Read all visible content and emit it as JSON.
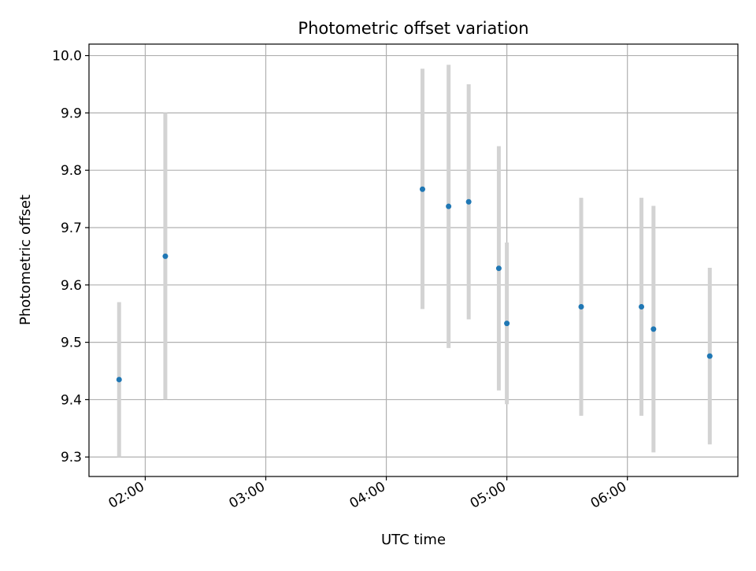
{
  "chart_data": {
    "type": "scatter",
    "title": "Photometric offset variation",
    "xlabel": "UTC time",
    "ylabel": "Photometric offset",
    "xlim": [
      "01:32",
      "06:55"
    ],
    "ylim": [
      9.266,
      10.02
    ],
    "x_ticks": [
      "02:00",
      "03:00",
      "04:00",
      "05:00",
      "06:00"
    ],
    "y_ticks": [
      9.3,
      9.4,
      9.5,
      9.6,
      9.7,
      9.8,
      9.9,
      10.0
    ],
    "y_tick_labels": [
      "9.3",
      "9.4",
      "9.5",
      "9.6",
      "9.7",
      "9.8",
      "9.9",
      "10.0"
    ],
    "grid": true,
    "colors": {
      "points": "#1f77b4",
      "errorbars": "#d3d3d3",
      "grid": "#b0b0b0"
    },
    "points": [
      {
        "x": "01:47",
        "y": 9.435,
        "ylow": 9.3,
        "yhigh": 9.57
      },
      {
        "x": "02:10",
        "y": 9.65,
        "ylow": 9.4,
        "yhigh": 9.9
      },
      {
        "x": "04:18",
        "y": 9.767,
        "ylow": 9.558,
        "yhigh": 9.977
      },
      {
        "x": "04:31",
        "y": 9.737,
        "ylow": 9.49,
        "yhigh": 9.984
      },
      {
        "x": "04:41",
        "y": 9.745,
        "ylow": 9.54,
        "yhigh": 9.95
      },
      {
        "x": "04:56",
        "y": 9.629,
        "ylow": 9.416,
        "yhigh": 9.842
      },
      {
        "x": "05:00",
        "y": 9.533,
        "ylow": 9.392,
        "yhigh": 9.674
      },
      {
        "x": "05:37",
        "y": 9.562,
        "ylow": 9.372,
        "yhigh": 9.752
      },
      {
        "x": "06:07",
        "y": 9.562,
        "ylow": 9.372,
        "yhigh": 9.752
      },
      {
        "x": "06:13",
        "y": 9.523,
        "ylow": 9.308,
        "yhigh": 9.738
      },
      {
        "x": "06:41",
        "y": 9.476,
        "ylow": 9.322,
        "yhigh": 9.63
      }
    ]
  }
}
